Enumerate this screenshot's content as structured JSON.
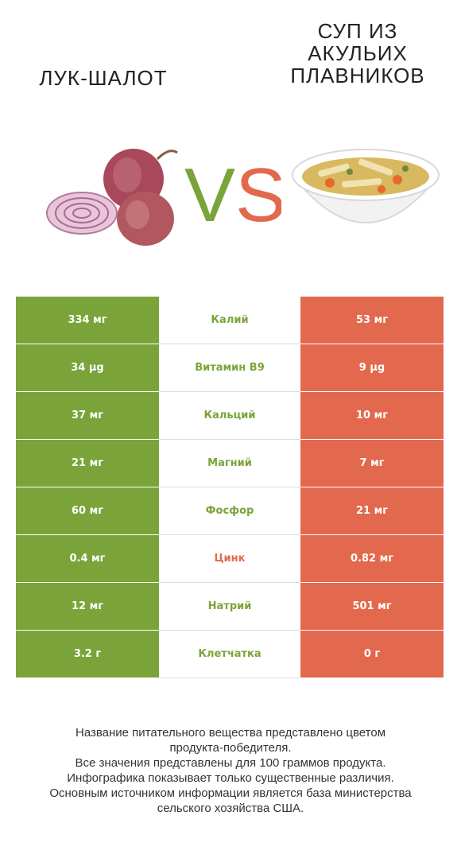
{
  "left_title": [
    "ЛУК-ШАЛОТ"
  ],
  "right_title": [
    "СУП ИЗ",
    "АКУЛЬИХ",
    "ПЛАВНИКОВ"
  ],
  "vs": {
    "v": "V",
    "s": "S"
  },
  "colors": {
    "winner_left": "#7aa43a",
    "winner_right": "#e2694d"
  },
  "rows": [
    {
      "left": "334 мг",
      "nutrient": "Калий",
      "right": "53 мг",
      "winner": "left"
    },
    {
      "left": "34 µg",
      "nutrient": "Витамин B9",
      "right": "9 µg",
      "winner": "left"
    },
    {
      "left": "37 мг",
      "nutrient": "Кальций",
      "right": "10 мг",
      "winner": "left"
    },
    {
      "left": "21 мг",
      "nutrient": "Магний",
      "right": "7 мг",
      "winner": "left"
    },
    {
      "left": "60 мг",
      "nutrient": "Фосфор",
      "right": "21 мг",
      "winner": "left"
    },
    {
      "left": "0.4 мг",
      "nutrient": "Цинк",
      "right": "0.82 мг",
      "winner": "right"
    },
    {
      "left": "12 мг",
      "nutrient": "Натрий",
      "right": "501 мг",
      "winner": "left"
    },
    {
      "left": "3.2 г",
      "nutrient": "Клетчатка",
      "right": "0 г",
      "winner": "left"
    }
  ],
  "footer": [
    "Название питательного вещества представлено цветом",
    "продукта-победителя.",
    "Все значения представлены для 100 граммов продукта.",
    "Инфографика показывает только существенные различия.",
    "Основным источником информации является база министерства",
    "сельского хозяйства США."
  ]
}
